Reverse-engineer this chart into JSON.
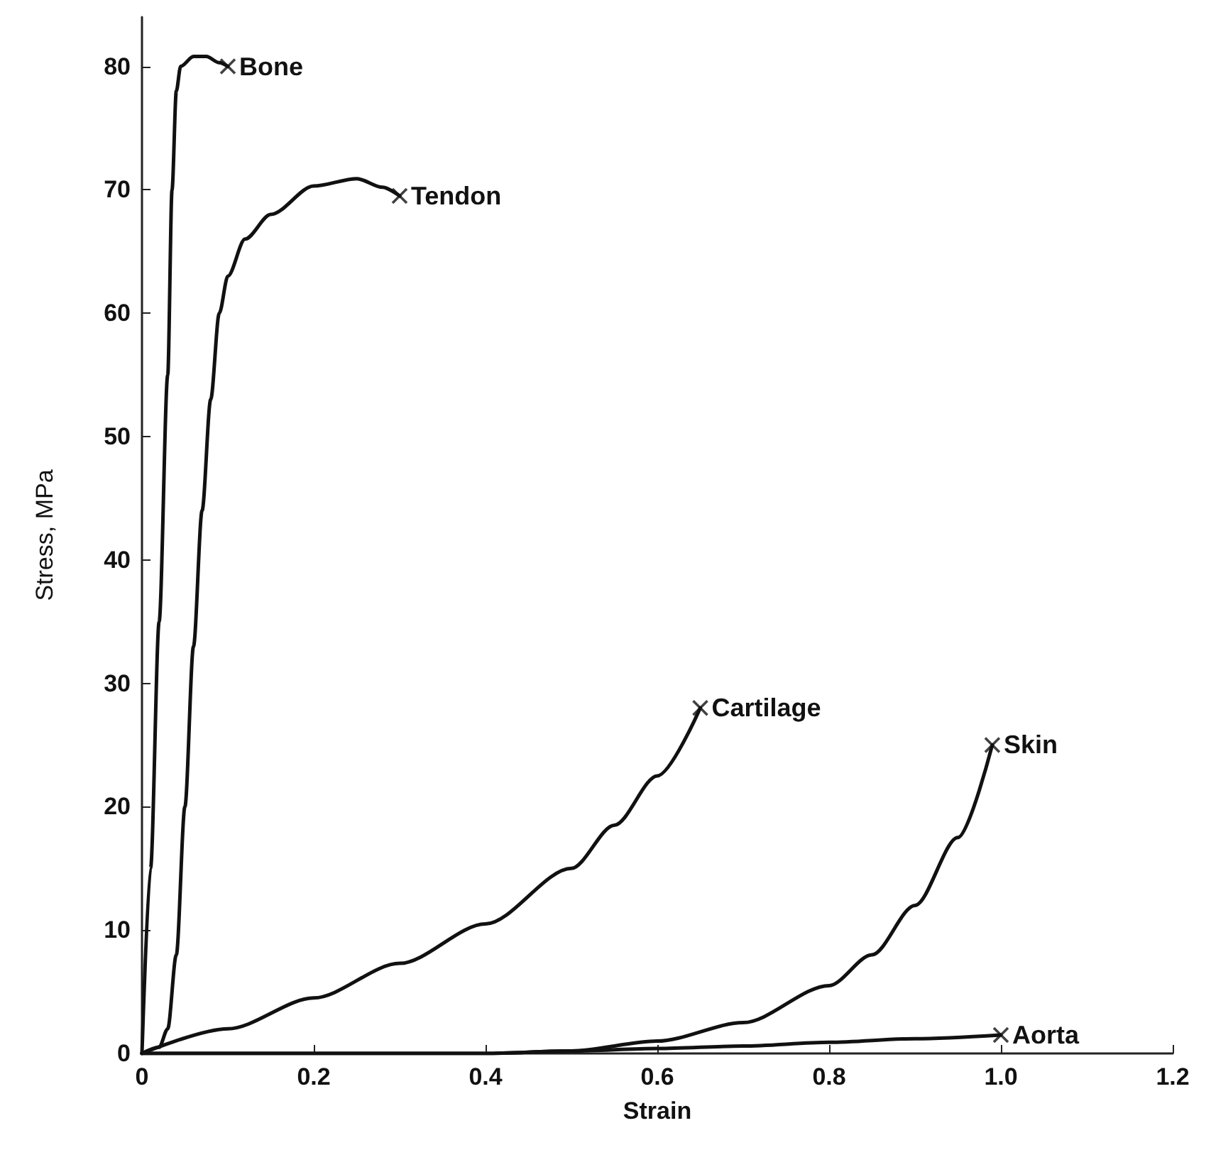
{
  "chart_data": {
    "type": "line",
    "xlabel": "Strain",
    "ylabel": "Stress, MPa",
    "xlim": [
      0,
      1.2
    ],
    "ylim": [
      0,
      84
    ],
    "xticks": [
      0,
      0.2,
      0.4,
      0.6,
      0.8,
      {
        "value": 1,
        "label": "1.0"
      },
      1.2
    ],
    "yticks": [
      0,
      10,
      20,
      30,
      40,
      50,
      60,
      70,
      80
    ],
    "grid": false,
    "legend": false,
    "line_style": "solid",
    "series": [
      {
        "name": "Bone",
        "color": "#111111",
        "x": [
          0,
          0.01,
          0.02,
          0.03,
          0.035,
          0.04,
          0.045,
          0.06,
          0.075,
          0.09,
          0.1
        ],
        "values": [
          0,
          15,
          35,
          55,
          70,
          78,
          80,
          80.8,
          80.8,
          80.3,
          80
        ]
      },
      {
        "name": "Tendon",
        "color": "#111111",
        "x": [
          0,
          0.02,
          0.03,
          0.04,
          0.05,
          0.06,
          0.07,
          0.08,
          0.09,
          0.1,
          0.12,
          0.15,
          0.2,
          0.25,
          0.28,
          0.3
        ],
        "values": [
          0,
          0.5,
          2,
          8,
          20,
          33,
          44,
          53,
          60,
          63,
          66,
          68,
          70.3,
          70.9,
          70.2,
          69.5
        ]
      },
      {
        "name": "Cartilage",
        "color": "#111111",
        "x": [
          0,
          0.1,
          0.2,
          0.3,
          0.4,
          0.5,
          0.55,
          0.6,
          0.65
        ],
        "values": [
          0,
          2,
          4.5,
          7.3,
          10.5,
          15,
          18.5,
          22.5,
          28
        ]
      },
      {
        "name": "Skin",
        "color": "#111111",
        "x": [
          0,
          0.4,
          0.5,
          0.6,
          0.7,
          0.8,
          0.85,
          0.9,
          0.95,
          0.99
        ],
        "values": [
          0,
          0,
          0.2,
          1,
          2.5,
          5.5,
          8,
          12,
          17.5,
          25
        ]
      },
      {
        "name": "Aorta",
        "color": "#111111",
        "x": [
          0,
          0.4,
          0.5,
          0.6,
          0.7,
          0.8,
          0.9,
          1.0
        ],
        "values": [
          0,
          0,
          0.2,
          0.4,
          0.6,
          0.9,
          1.2,
          1.5
        ]
      },
      {
        "type": "scatter",
        "marker": "cross",
        "color": "#111111",
        "x": [
          0.1,
          0.3,
          0.65,
          0.99,
          1.0
        ],
        "values": [
          80,
          69.5,
          28,
          25,
          1.5
        ]
      }
    ]
  }
}
